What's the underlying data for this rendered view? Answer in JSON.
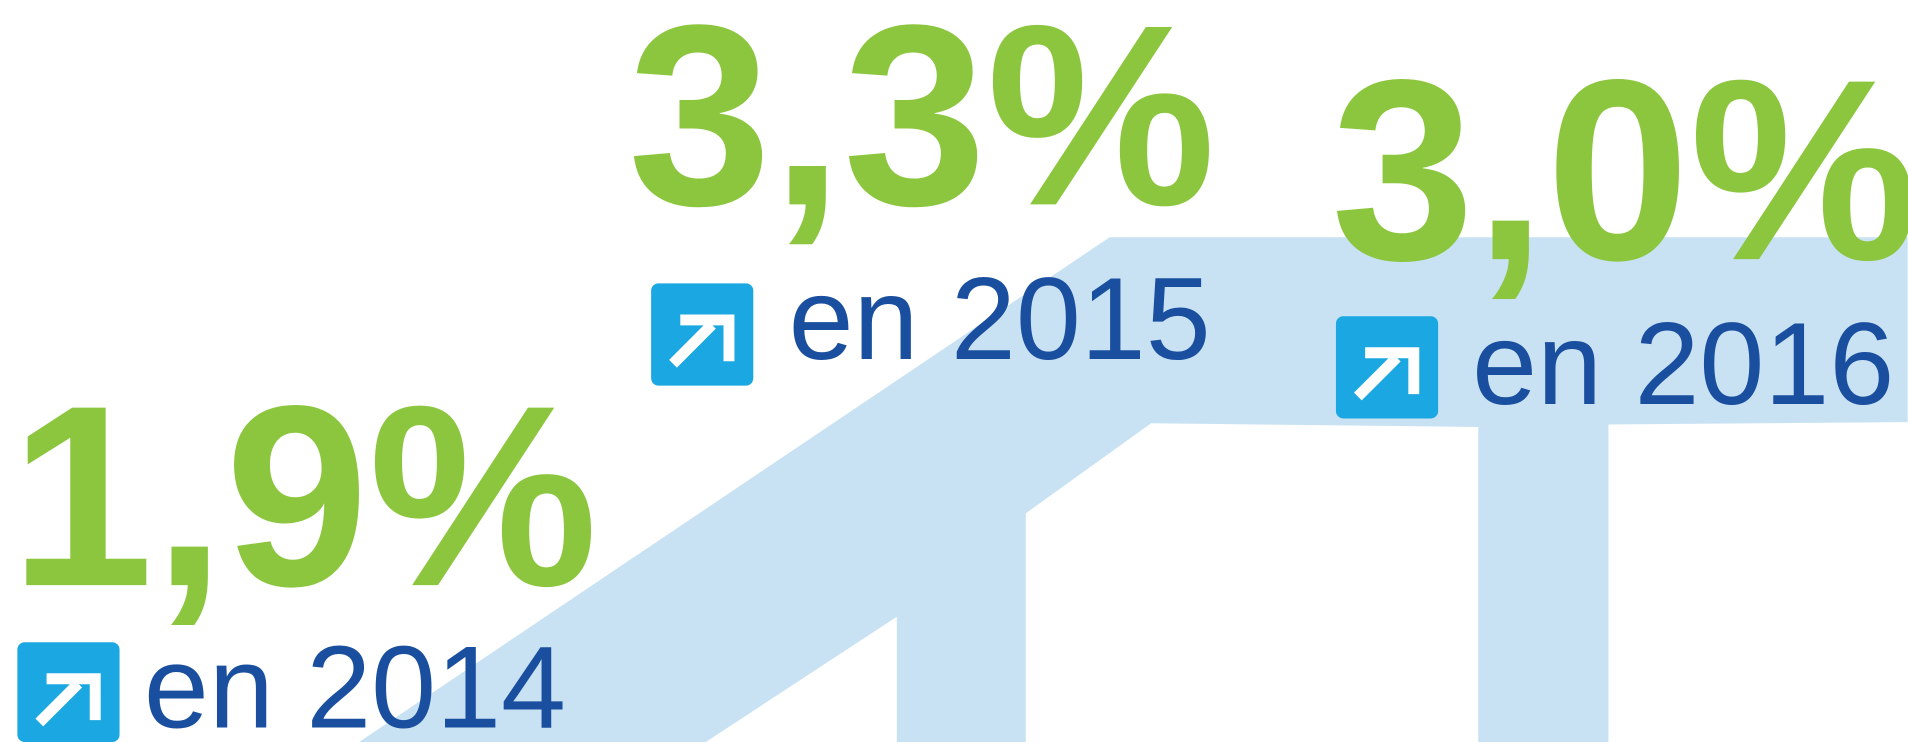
{
  "items": [
    {
      "value": "1,9%",
      "label": "en 2014"
    },
    {
      "value": "3,3%",
      "label": "en 2015"
    },
    {
      "value": "3,0%",
      "label": "en 2016"
    }
  ]
}
